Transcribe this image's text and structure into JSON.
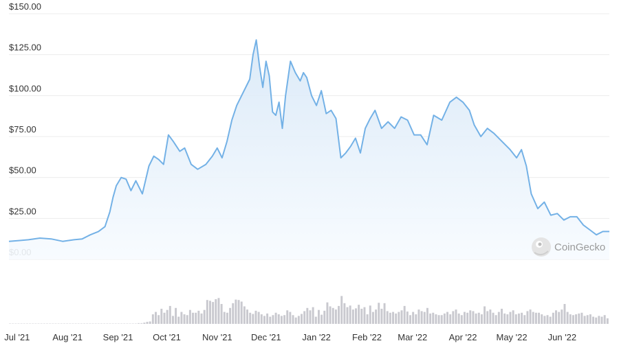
{
  "watermark": {
    "text": "CoinGecko",
    "icon": "gecko-logo-icon"
  },
  "colors": {
    "line": "#73b1e6",
    "area_top": "#d8e8f7",
    "area_bottom": "#f7fbff",
    "volume": "#c9c9cf",
    "volume_early": "#d6d6db",
    "grid": "#ececec"
  },
  "chart_data": [
    {
      "type": "area",
      "title": "",
      "xlabel": "",
      "ylabel": "",
      "ylim": [
        0,
        150
      ],
      "y_ticks": [
        "$0.00",
        "$25.00",
        "$50.00",
        "$75.00",
        "$100.00",
        "$125.00",
        "$150.00"
      ],
      "y_tick_values": [
        0,
        25,
        50,
        75,
        100,
        125,
        150
      ],
      "x_ticks": [
        "Jul '21",
        "Aug '21",
        "Sep '21",
        "Oct '21",
        "Nov '21",
        "Dec '21",
        "Jan '22",
        "Feb '22",
        "Mar '22",
        "Apr '22",
        "May '22",
        "Jun '22"
      ],
      "x_tick_values": [
        "2021-07-01",
        "2021-08-01",
        "2021-09-01",
        "2021-10-01",
        "2021-11-01",
        "2021-12-01",
        "2022-01-01",
        "2022-02-01",
        "2022-03-01",
        "2022-04-01",
        "2022-05-01",
        "2022-06-01"
      ],
      "x_range": [
        "2021-06-26",
        "2022-06-30"
      ],
      "grid": true,
      "series": [
        {
          "x": [
            "2021-06-26",
            "2021-07-02",
            "2021-07-08",
            "2021-07-15",
            "2021-07-22",
            "2021-07-29",
            "2021-08-05",
            "2021-08-10",
            "2021-08-15",
            "2021-08-20",
            "2021-08-24",
            "2021-08-27",
            "2021-08-29",
            "2021-08-31",
            "2021-09-03",
            "2021-09-06",
            "2021-09-09",
            "2021-09-12",
            "2021-09-16",
            "2021-09-20",
            "2021-09-23",
            "2021-09-26",
            "2021-09-29",
            "2021-10-02",
            "2021-10-05",
            "2021-10-09",
            "2021-10-12",
            "2021-10-16",
            "2021-10-20",
            "2021-10-25",
            "2021-10-29",
            "2021-11-01",
            "2021-11-04",
            "2021-11-07",
            "2021-11-10",
            "2021-11-13",
            "2021-11-16",
            "2021-11-19",
            "2021-11-21",
            "2021-11-23",
            "2021-11-25",
            "2021-11-27",
            "2021-11-29",
            "2021-12-01",
            "2021-12-03",
            "2021-12-05",
            "2021-12-07",
            "2021-12-09",
            "2021-12-11",
            "2021-12-13",
            "2021-12-16",
            "2021-12-19",
            "2021-12-22",
            "2021-12-24",
            "2021-12-26",
            "2021-12-29",
            "2022-01-01",
            "2022-01-04",
            "2022-01-07",
            "2022-01-10",
            "2022-01-13",
            "2022-01-16",
            "2022-01-19",
            "2022-01-22",
            "2022-01-25",
            "2022-01-28",
            "2022-01-31",
            "2022-02-03",
            "2022-02-06",
            "2022-02-10",
            "2022-02-14",
            "2022-02-18",
            "2022-02-22",
            "2022-02-26",
            "2022-03-02",
            "2022-03-06",
            "2022-03-10",
            "2022-03-14",
            "2022-03-19",
            "2022-03-24",
            "2022-03-28",
            "2022-04-01",
            "2022-04-05",
            "2022-04-08",
            "2022-04-12",
            "2022-04-16",
            "2022-04-20",
            "2022-04-25",
            "2022-04-30",
            "2022-05-04",
            "2022-05-07",
            "2022-05-10",
            "2022-05-13",
            "2022-05-17",
            "2022-05-21",
            "2022-05-25",
            "2022-05-29",
            "2022-06-02",
            "2022-06-06",
            "2022-06-10",
            "2022-06-14",
            "2022-06-18",
            "2022-06-22",
            "2022-06-26",
            "2022-06-30"
          ],
          "values": [
            11,
            11.5,
            12,
            13,
            12.5,
            11,
            12,
            12.5,
            15,
            17,
            20,
            29,
            38,
            45,
            50,
            49,
            42,
            48,
            40,
            57,
            63,
            61,
            58,
            76,
            72,
            66,
            68,
            58,
            55,
            58,
            63,
            68,
            62,
            72,
            85,
            94,
            100,
            106,
            110,
            125,
            134,
            118,
            105,
            121,
            112,
            90,
            88,
            96,
            80,
            100,
            121,
            114,
            109,
            114,
            111,
            100,
            94,
            103,
            89,
            91,
            86,
            62,
            65,
            69,
            74,
            65,
            80,
            86,
            91,
            80,
            84,
            80,
            87,
            85,
            76,
            76,
            70,
            88,
            85,
            96,
            99,
            96,
            91,
            82,
            75,
            80,
            77,
            72,
            67,
            62,
            67,
            57,
            40,
            31,
            35,
            27,
            28,
            24,
            26,
            26,
            21,
            18,
            15,
            17,
            17
          ]
        }
      ]
    },
    {
      "type": "bar",
      "title": "",
      "xlabel": "",
      "ylabel": "",
      "ylim": [
        0,
        100
      ],
      "grid": false,
      "series": [
        {
          "x_start": "2021-06-26",
          "x_end": "2022-06-30",
          "bar_count": 200,
          "values": [
            1,
            1,
            1,
            1,
            1,
            1,
            1,
            1,
            1,
            1,
            1,
            1,
            1,
            1,
            1,
            1,
            1,
            1,
            1,
            1,
            1,
            1,
            1,
            1,
            1,
            1,
            1,
            1,
            1,
            1,
            1,
            1,
            1,
            1,
            1,
            1,
            1,
            1,
            1,
            1,
            1,
            1,
            1,
            1,
            1,
            2,
            2,
            3,
            5,
            6,
            24,
            30,
            22,
            38,
            28,
            35,
            45,
            20,
            40,
            18,
            30,
            24,
            22,
            35,
            28,
            28,
            33,
            26,
            35,
            60,
            58,
            55,
            62,
            65,
            50,
            30,
            28,
            40,
            52,
            61,
            60,
            56,
            44,
            36,
            28,
            25,
            33,
            30,
            24,
            20,
            26,
            18,
            22,
            28,
            24,
            20,
            22,
            34,
            30,
            22,
            16,
            20,
            25,
            32,
            40,
            34,
            42,
            18,
            35,
            23,
            33,
            54,
            44,
            40,
            36,
            45,
            70,
            52,
            42,
            46,
            36,
            39,
            48,
            38,
            42,
            24,
            46,
            30,
            36,
            53,
            38,
            52,
            32,
            28,
            30,
            26,
            30,
            34,
            45,
            31,
            22,
            30,
            24,
            36,
            32,
            30,
            40,
            26,
            28,
            24,
            22,
            22,
            26,
            30,
            24,
            32,
            36,
            26,
            22,
            30,
            28,
            34,
            32,
            26,
            28,
            24,
            44,
            32,
            36,
            28,
            22,
            30,
            38,
            26,
            24,
            30,
            34,
            24,
            26,
            28,
            22,
            32,
            36,
            30,
            28,
            28,
            24,
            20,
            22,
            18,
            28,
            34,
            30,
            36,
            50,
            30,
            24,
            22,
            24,
            26,
            28,
            20,
            22,
            24,
            18,
            16,
            20,
            18,
            22,
            14
          ]
        }
      ]
    }
  ]
}
